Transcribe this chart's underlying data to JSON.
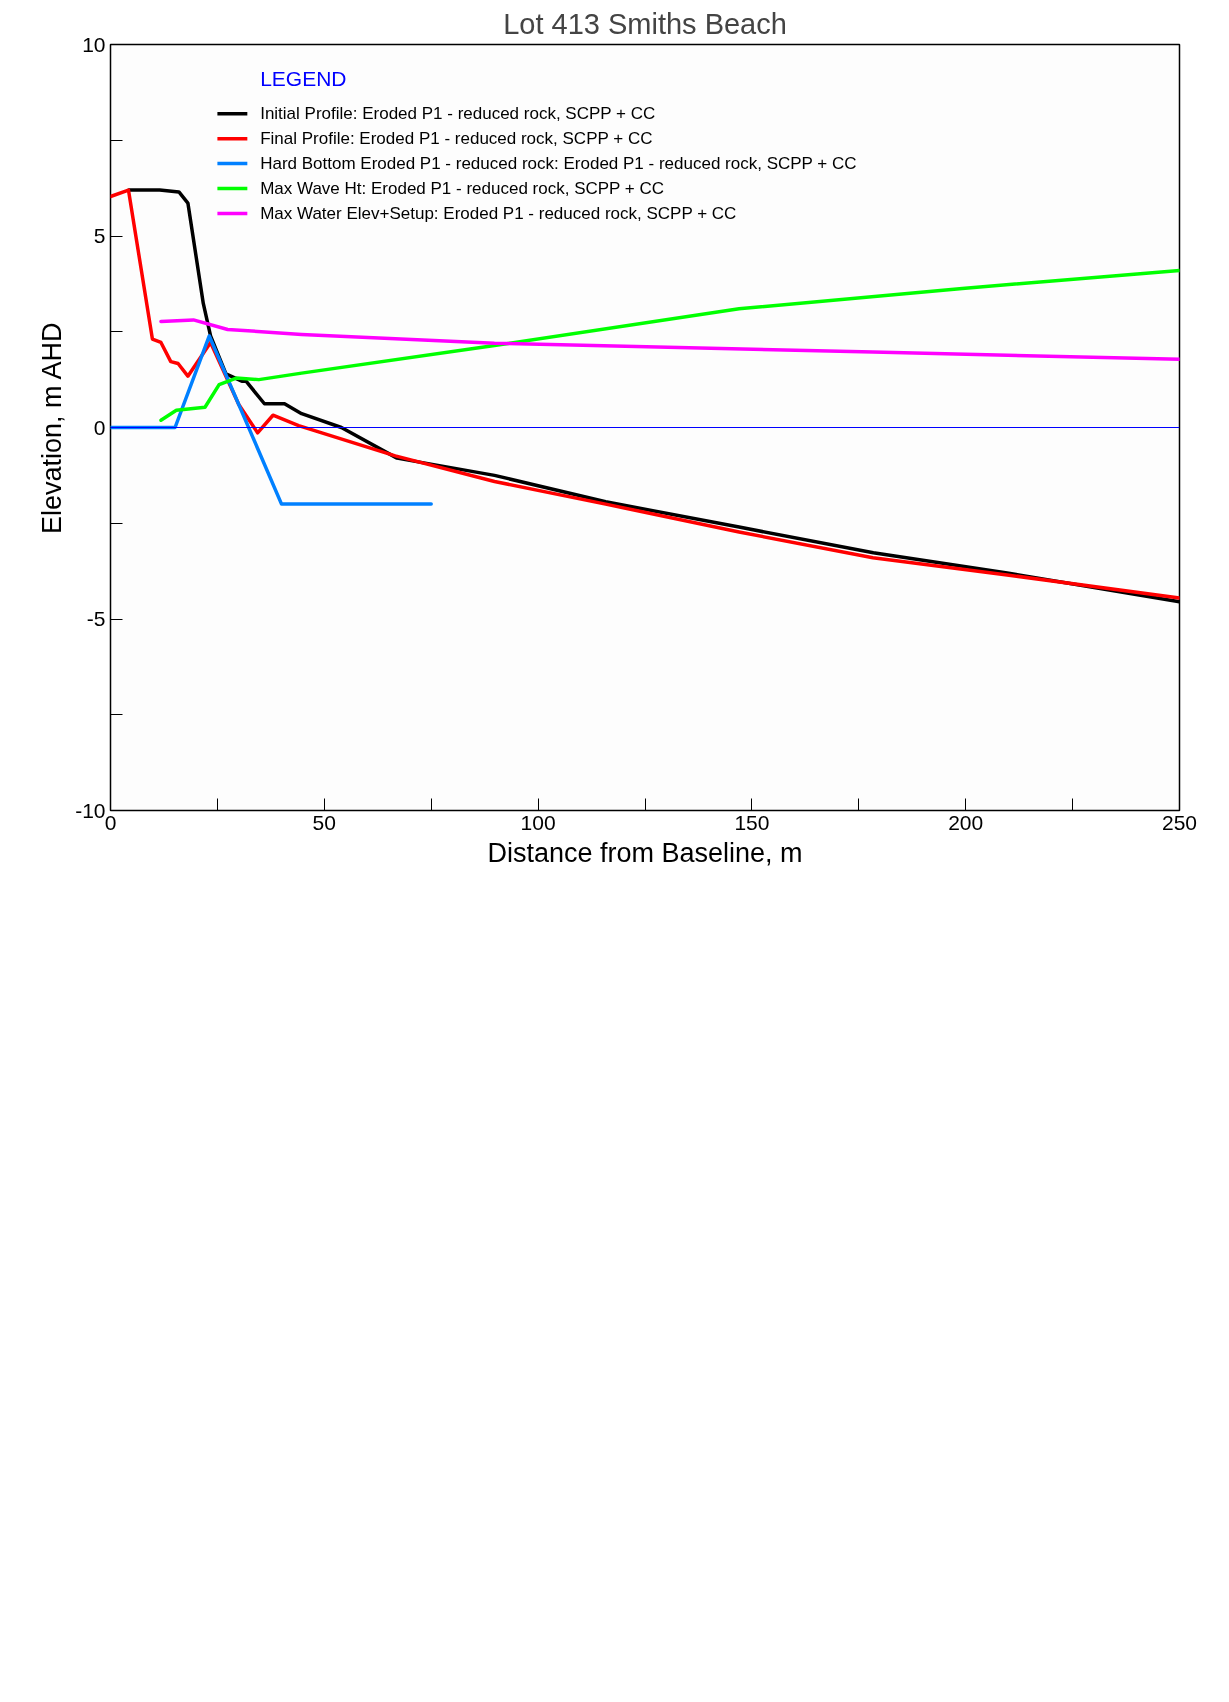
{
  "chart_data": {
    "type": "line",
    "title": "Lot 413 Smiths Beach",
    "xlabel": "Distance from Baseline, m",
    "ylabel": "Elevation, m AHD",
    "legend_title": "LEGEND",
    "xlim": [
      0,
      250
    ],
    "ylim": [
      -10,
      10
    ],
    "xticks": [
      0,
      {
        "value": 25,
        "label": null
      },
      50,
      {
        "value": 75,
        "label": null
      },
      100,
      {
        "value": 125,
        "label": null
      },
      150,
      {
        "value": 175,
        "label": null
      },
      200,
      {
        "value": 225,
        "label": null
      },
      250
    ],
    "yticks": [
      -10,
      {
        "value": -7.5,
        "label": null
      },
      -5,
      {
        "value": -2.5,
        "label": null
      },
      0,
      {
        "value": 2.5,
        "label": null
      },
      5,
      {
        "value": 7.5,
        "label": null
      },
      10
    ],
    "grid": false,
    "legend": "top left",
    "ref_lines": [
      {
        "axis": "y",
        "value": 0,
        "color": "#0000ff"
      }
    ],
    "series": [
      {
        "name": "Initial Profile: Eroded P1 - reduced rock, SCPP + CC",
        "color": "#000000",
        "x": [
          4.3,
          11.5,
          16,
          18.1,
          21.7,
          23.4,
          27,
          30.7,
          31.7,
          36,
          40.7,
          44.7,
          54,
          67,
          89.8,
          115.8,
          147,
          178.4,
          209.7,
          250
        ],
        "values": [
          6.2,
          6.2,
          6.15,
          5.86,
          3.24,
          2.39,
          1.4,
          1.21,
          1.21,
          0.62,
          0.62,
          0.36,
          0,
          -0.8,
          -1.25,
          -1.94,
          -2.6,
          -3.27,
          -3.8,
          -4.55
        ]
      },
      {
        "name": "Final Profile: Eroded P1 - reduced rock, SCPP + CC",
        "color": "#ff0000",
        "x": [
          0,
          4.2,
          9.8,
          11.8,
          14.1,
          15.8,
          18.1,
          23.4,
          30,
          34.4,
          38,
          44,
          66.6,
          89.8,
          115.8,
          147,
          178.3,
          209.7,
          250
        ],
        "values": [
          6.03,
          6.2,
          2.31,
          2.22,
          1.72,
          1.67,
          1.34,
          2.22,
          0.6,
          -0.14,
          0.32,
          0.05,
          -0.74,
          -1.41,
          -2.0,
          -2.73,
          -3.4,
          -3.85,
          -4.45
        ]
      },
      {
        "name": "Hard Bottom Eroded P1 - reduced rock: Eroded P1 - reduced rock, SCPP + CC",
        "color": "#0080ff",
        "x": [
          0,
          15.1,
          23.1,
          40,
          75
        ],
        "values": [
          0,
          0,
          2.39,
          -2,
          -2
        ]
      },
      {
        "name": "Max Wave Ht: Eroded P1 - reduced rock, SCPP + CC",
        "color": "#00ff00",
        "x": [
          11.8,
          15.4,
          22.1,
          25.4,
          29.4,
          34.7,
          44.7,
          89.8,
          147,
          199.2,
          250
        ],
        "values": [
          0.19,
          0.45,
          0.53,
          1.12,
          1.29,
          1.25,
          1.42,
          2.14,
          3.1,
          3.63,
          4.1
        ]
      },
      {
        "name": "Max Water Elev+Setup: Eroded P1 - reduced rock, SCPP + CC",
        "color": "#ff00ff",
        "x": [
          11.8,
          19.4,
          27.4,
          44.7,
          89.8,
          178.3,
          250
        ],
        "values": [
          2.77,
          2.81,
          2.56,
          2.43,
          2.2,
          1.97,
          1.78
        ]
      }
    ]
  }
}
